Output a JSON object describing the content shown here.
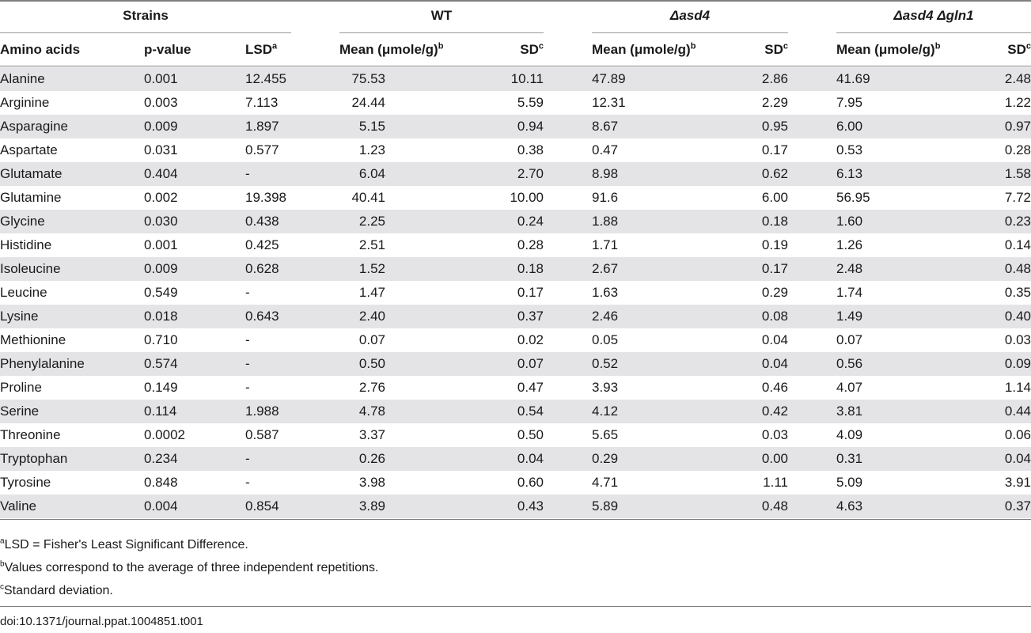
{
  "group_headers": [
    "Strains",
    "WT",
    "Δasd4",
    "Δasd4 Δgln1"
  ],
  "columns": [
    {
      "label": "Amino acids",
      "sup": ""
    },
    {
      "label": "p-value",
      "sup": ""
    },
    {
      "label": "LSD",
      "sup": "a"
    },
    {
      "label": "Mean (μmole/g)",
      "sup": "b"
    },
    {
      "label": "SD",
      "sup": "c"
    },
    {
      "label": "Mean (μmole/g)",
      "sup": "b"
    },
    {
      "label": "SD",
      "sup": "c"
    },
    {
      "label": "Mean (μmole/g)",
      "sup": "b"
    },
    {
      "label": "SD",
      "sup": "c"
    }
  ],
  "rows": [
    [
      "Alanine",
      "0.001",
      "12.455",
      "75.53",
      "10.11",
      "47.89",
      "2.86",
      "41.69",
      "2.48"
    ],
    [
      "Arginine",
      "0.003",
      "7.113",
      "24.44",
      "5.59",
      "12.31",
      "2.29",
      "7.95",
      "1.22"
    ],
    [
      "Asparagine",
      "0.009",
      "1.897",
      "5.15",
      "0.94",
      "8.67",
      "0.95",
      "6.00",
      "0.97"
    ],
    [
      "Aspartate",
      "0.031",
      "0.577",
      "1.23",
      "0.38",
      "0.47",
      "0.17",
      "0.53",
      "0.28"
    ],
    [
      "Glutamate",
      "0.404",
      "-",
      "6.04",
      "2.70",
      "8.98",
      "0.62",
      "6.13",
      "1.58"
    ],
    [
      "Glutamine",
      "0.002",
      "19.398",
      "40.41",
      "10.00",
      "91.6",
      "6.00",
      "56.95",
      "7.72"
    ],
    [
      "Glycine",
      "0.030",
      "0.438",
      "2.25",
      "0.24",
      "1.88",
      "0.18",
      "1.60",
      "0.23"
    ],
    [
      "Histidine",
      "0.001",
      "0.425",
      "2.51",
      "0.28",
      "1.71",
      "0.19",
      "1.26",
      "0.14"
    ],
    [
      "Isoleucine",
      "0.009",
      "0.628",
      "1.52",
      "0.18",
      "2.67",
      "0.17",
      "2.48",
      "0.48"
    ],
    [
      "Leucine",
      "0.549",
      "-",
      "1.47",
      "0.17",
      "1.63",
      "0.29",
      "1.74",
      "0.35"
    ],
    [
      "Lysine",
      "0.018",
      "0.643",
      "2.40",
      "0.37",
      "2.46",
      "0.08",
      "1.49",
      "0.40"
    ],
    [
      "Methionine",
      "0.710",
      "-",
      "0.07",
      "0.02",
      "0.05",
      "0.04",
      "0.07",
      "0.03"
    ],
    [
      "Phenylalanine",
      "0.574",
      "-",
      "0.50",
      "0.07",
      "0.52",
      "0.04",
      "0.56",
      "0.09"
    ],
    [
      "Proline",
      "0.149",
      "-",
      "2.76",
      "0.47",
      "3.93",
      "0.46",
      "4.07",
      "1.14"
    ],
    [
      "Serine",
      "0.114",
      "1.988",
      "4.78",
      "0.54",
      "4.12",
      "0.42",
      "3.81",
      "0.44"
    ],
    [
      "Threonine",
      "0.0002",
      "0.587",
      "3.37",
      "0.50",
      "5.65",
      "0.03",
      "4.09",
      "0.06"
    ],
    [
      "Tryptophan",
      "0.234",
      "-",
      "0.26",
      "0.04",
      "0.29",
      "0.00",
      "0.31",
      "0.04"
    ],
    [
      "Tyrosine",
      "0.848",
      "-",
      "3.98",
      "0.60",
      "4.71",
      "1.11",
      "5.09",
      "3.91"
    ],
    [
      "Valine",
      "0.004",
      "0.854",
      "3.89",
      "0.43",
      "5.89",
      "0.48",
      "4.63",
      "0.37"
    ]
  ],
  "footnotes": [
    {
      "sup": "a",
      "text": "LSD = Fisher's Least Significant Difference."
    },
    {
      "sup": "b",
      "text": "Values correspond to the average of three independent repetitions."
    },
    {
      "sup": "c",
      "text": "Standard deviation."
    }
  ],
  "doi": "doi:10.1371/journal.ppat.1004851.t001"
}
